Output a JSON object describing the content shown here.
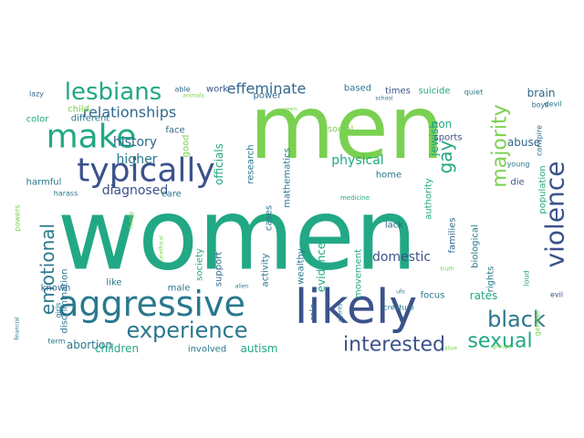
{
  "palette": {
    "yellow": "#fde725",
    "lime": "#a5db36",
    "green": "#7ad151",
    "green2": "#4ac16d",
    "teal": "#22a884",
    "teal2": "#2a788e",
    "blue": "#31688e",
    "indigo": "#3b528b",
    "purple": "#414487",
    "violet": "#443983",
    "dark": "#482475"
  },
  "words": [
    {
      "text": "men",
      "color": "green"
    },
    {
      "text": "women",
      "color": "teal"
    },
    {
      "text": "likely",
      "color": "indigo"
    },
    {
      "text": "aggressive",
      "color": "teal2"
    },
    {
      "text": "typically",
      "color": "indigo"
    },
    {
      "text": "make",
      "color": "teal"
    },
    {
      "text": "experience",
      "color": "teal2"
    },
    {
      "text": "lesbians",
      "color": "teal"
    },
    {
      "text": "violence",
      "color": "indigo"
    },
    {
      "text": "black",
      "color": "teal2"
    },
    {
      "text": "interested",
      "color": "indigo"
    },
    {
      "text": "majority",
      "color": "green"
    },
    {
      "text": "sexual",
      "color": "teal"
    },
    {
      "text": "emotional",
      "color": "teal2"
    },
    {
      "text": "gay",
      "color": "teal"
    },
    {
      "text": "relationships",
      "color": "blue"
    },
    {
      "text": "effeminate",
      "color": "blue"
    },
    {
      "text": "history",
      "color": "blue"
    },
    {
      "text": "diagnosed",
      "color": "indigo"
    },
    {
      "text": "physical",
      "color": "teal"
    },
    {
      "text": "higher",
      "color": "teal2"
    },
    {
      "text": "abortion",
      "color": "teal2"
    },
    {
      "text": "autism",
      "color": "teal"
    },
    {
      "text": "children",
      "color": "teal"
    },
    {
      "text": "domestic",
      "color": "indigo"
    },
    {
      "text": "rates",
      "color": "teal"
    },
    {
      "text": "abuse",
      "color": "blue"
    },
    {
      "text": "brain",
      "color": "blue"
    },
    {
      "text": "work",
      "color": "indigo"
    },
    {
      "text": "based",
      "color": "teal2"
    },
    {
      "text": "times",
      "color": "indigo"
    },
    {
      "text": "suicide",
      "color": "teal"
    },
    {
      "text": "jewish",
      "color": "teal"
    },
    {
      "text": "power",
      "color": "blue"
    },
    {
      "text": "child",
      "color": "green"
    },
    {
      "text": "different",
      "color": "teal2"
    },
    {
      "text": "good",
      "color": "green"
    },
    {
      "text": "face",
      "color": "blue"
    },
    {
      "text": "officials",
      "color": "teal"
    },
    {
      "text": "research",
      "color": "teal2"
    },
    {
      "text": "mathematics",
      "color": "teal2"
    },
    {
      "text": "cases",
      "color": "teal2"
    },
    {
      "text": "society",
      "color": "teal"
    },
    {
      "text": "support",
      "color": "blue"
    },
    {
      "text": "activity",
      "color": "teal2"
    },
    {
      "text": "wealthy",
      "color": "teal2"
    },
    {
      "text": "evidence",
      "color": "teal"
    },
    {
      "text": "movement",
      "color": "teal"
    },
    {
      "text": "role",
      "color": "blue"
    },
    {
      "text": "lack",
      "color": "blue"
    },
    {
      "text": "families",
      "color": "blue"
    },
    {
      "text": "biological",
      "color": "teal2"
    },
    {
      "text": "rights",
      "color": "teal2"
    },
    {
      "text": "population",
      "color": "teal"
    },
    {
      "text": "die",
      "color": "indigo"
    },
    {
      "text": "authority",
      "color": "teal"
    },
    {
      "text": "home",
      "color": "teal2"
    },
    {
      "text": "sports",
      "color": "indigo"
    },
    {
      "text": "non",
      "color": "teal"
    },
    {
      "text": "social",
      "color": "green"
    },
    {
      "text": "focus",
      "color": "teal2"
    },
    {
      "text": "involved",
      "color": "teal2"
    },
    {
      "text": "known",
      "color": "blue"
    },
    {
      "text": "male",
      "color": "teal2"
    },
    {
      "text": "care",
      "color": "teal2"
    },
    {
      "text": "like",
      "color": "teal2"
    },
    {
      "text": "discrimination",
      "color": "teal2"
    },
    {
      "text": "girls",
      "color": "teal2"
    },
    {
      "text": "powers",
      "color": "green"
    },
    {
      "text": "harmful",
      "color": "teal2"
    },
    {
      "text": "color",
      "color": "teal"
    },
    {
      "text": "harass",
      "color": "teal2"
    },
    {
      "text": "able",
      "color": "blue"
    },
    {
      "text": "lazy",
      "color": "blue"
    },
    {
      "text": "animals",
      "color": "green"
    },
    {
      "text": "school",
      "color": "teal2"
    },
    {
      "text": "quiet",
      "color": "teal2"
    },
    {
      "text": "boys",
      "color": "blue"
    },
    {
      "text": "devil",
      "color": "teal2"
    },
    {
      "text": "conspire",
      "color": "blue"
    },
    {
      "text": "young",
      "color": "teal2"
    },
    {
      "text": "medicine",
      "color": "teal"
    },
    {
      "text": "seen",
      "color": "green"
    },
    {
      "text": "family",
      "color": "green"
    },
    {
      "text": "unethical",
      "color": "green"
    },
    {
      "text": "alien",
      "color": "teal2"
    },
    {
      "text": "creature",
      "color": "teal2"
    },
    {
      "text": "agents",
      "color": "teal2"
    },
    {
      "text": "ufo",
      "color": "teal2"
    },
    {
      "text": "loud",
      "color": "teal"
    },
    {
      "text": "gender",
      "color": "green"
    },
    {
      "text": "evil",
      "color": "indigo"
    },
    {
      "text": "term",
      "color": "teal2"
    },
    {
      "text": "financial",
      "color": "teal2"
    },
    {
      "text": "alive",
      "color": "green"
    },
    {
      "text": "groups",
      "color": "green"
    },
    {
      "text": "truth",
      "color": "green"
    }
  ]
}
